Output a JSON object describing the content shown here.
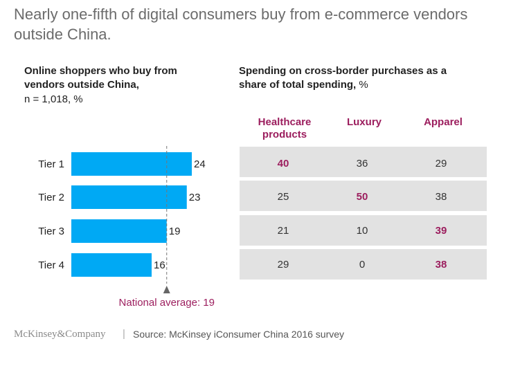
{
  "title": "Nearly one-fifth of digital consumers buy from e-commerce vendors outside China.",
  "left_panel": {
    "heading": "Online shoppers who buy from vendors outside China,",
    "subheading": "n = 1,018, %"
  },
  "right_panel": {
    "heading": "Spending on cross-border purchases as a share of total spending,",
    "unit": "%"
  },
  "chart_data": {
    "type": "bar",
    "orientation": "horizontal",
    "categories": [
      "Tier 1",
      "Tier 2",
      "Tier 3",
      "Tier 4"
    ],
    "values": [
      24,
      23,
      19,
      16
    ],
    "reference_line": {
      "label": "National average: 19",
      "value": 19
    },
    "bar_color": "#00a9f4",
    "accent_color": "#9c1e5e"
  },
  "table": {
    "columns": [
      "Healthcare products",
      "Luxury",
      "Apparel"
    ],
    "rows": [
      {
        "tier": "Tier 1",
        "values": [
          "40",
          "36",
          "29"
        ],
        "highlight": 0
      },
      {
        "tier": "Tier 2",
        "values": [
          "25",
          "50",
          "38"
        ],
        "highlight": 1
      },
      {
        "tier": "Tier 3",
        "values": [
          "21",
          "10",
          "39"
        ],
        "highlight": 2
      },
      {
        "tier": "Tier 4",
        "values": [
          "29",
          "0",
          "38"
        ],
        "highlight": 2
      }
    ]
  },
  "footer": {
    "logo": "McKinsey&Company",
    "separator": "|",
    "source": "Source: McKinsey iConsumer China 2016 survey"
  }
}
